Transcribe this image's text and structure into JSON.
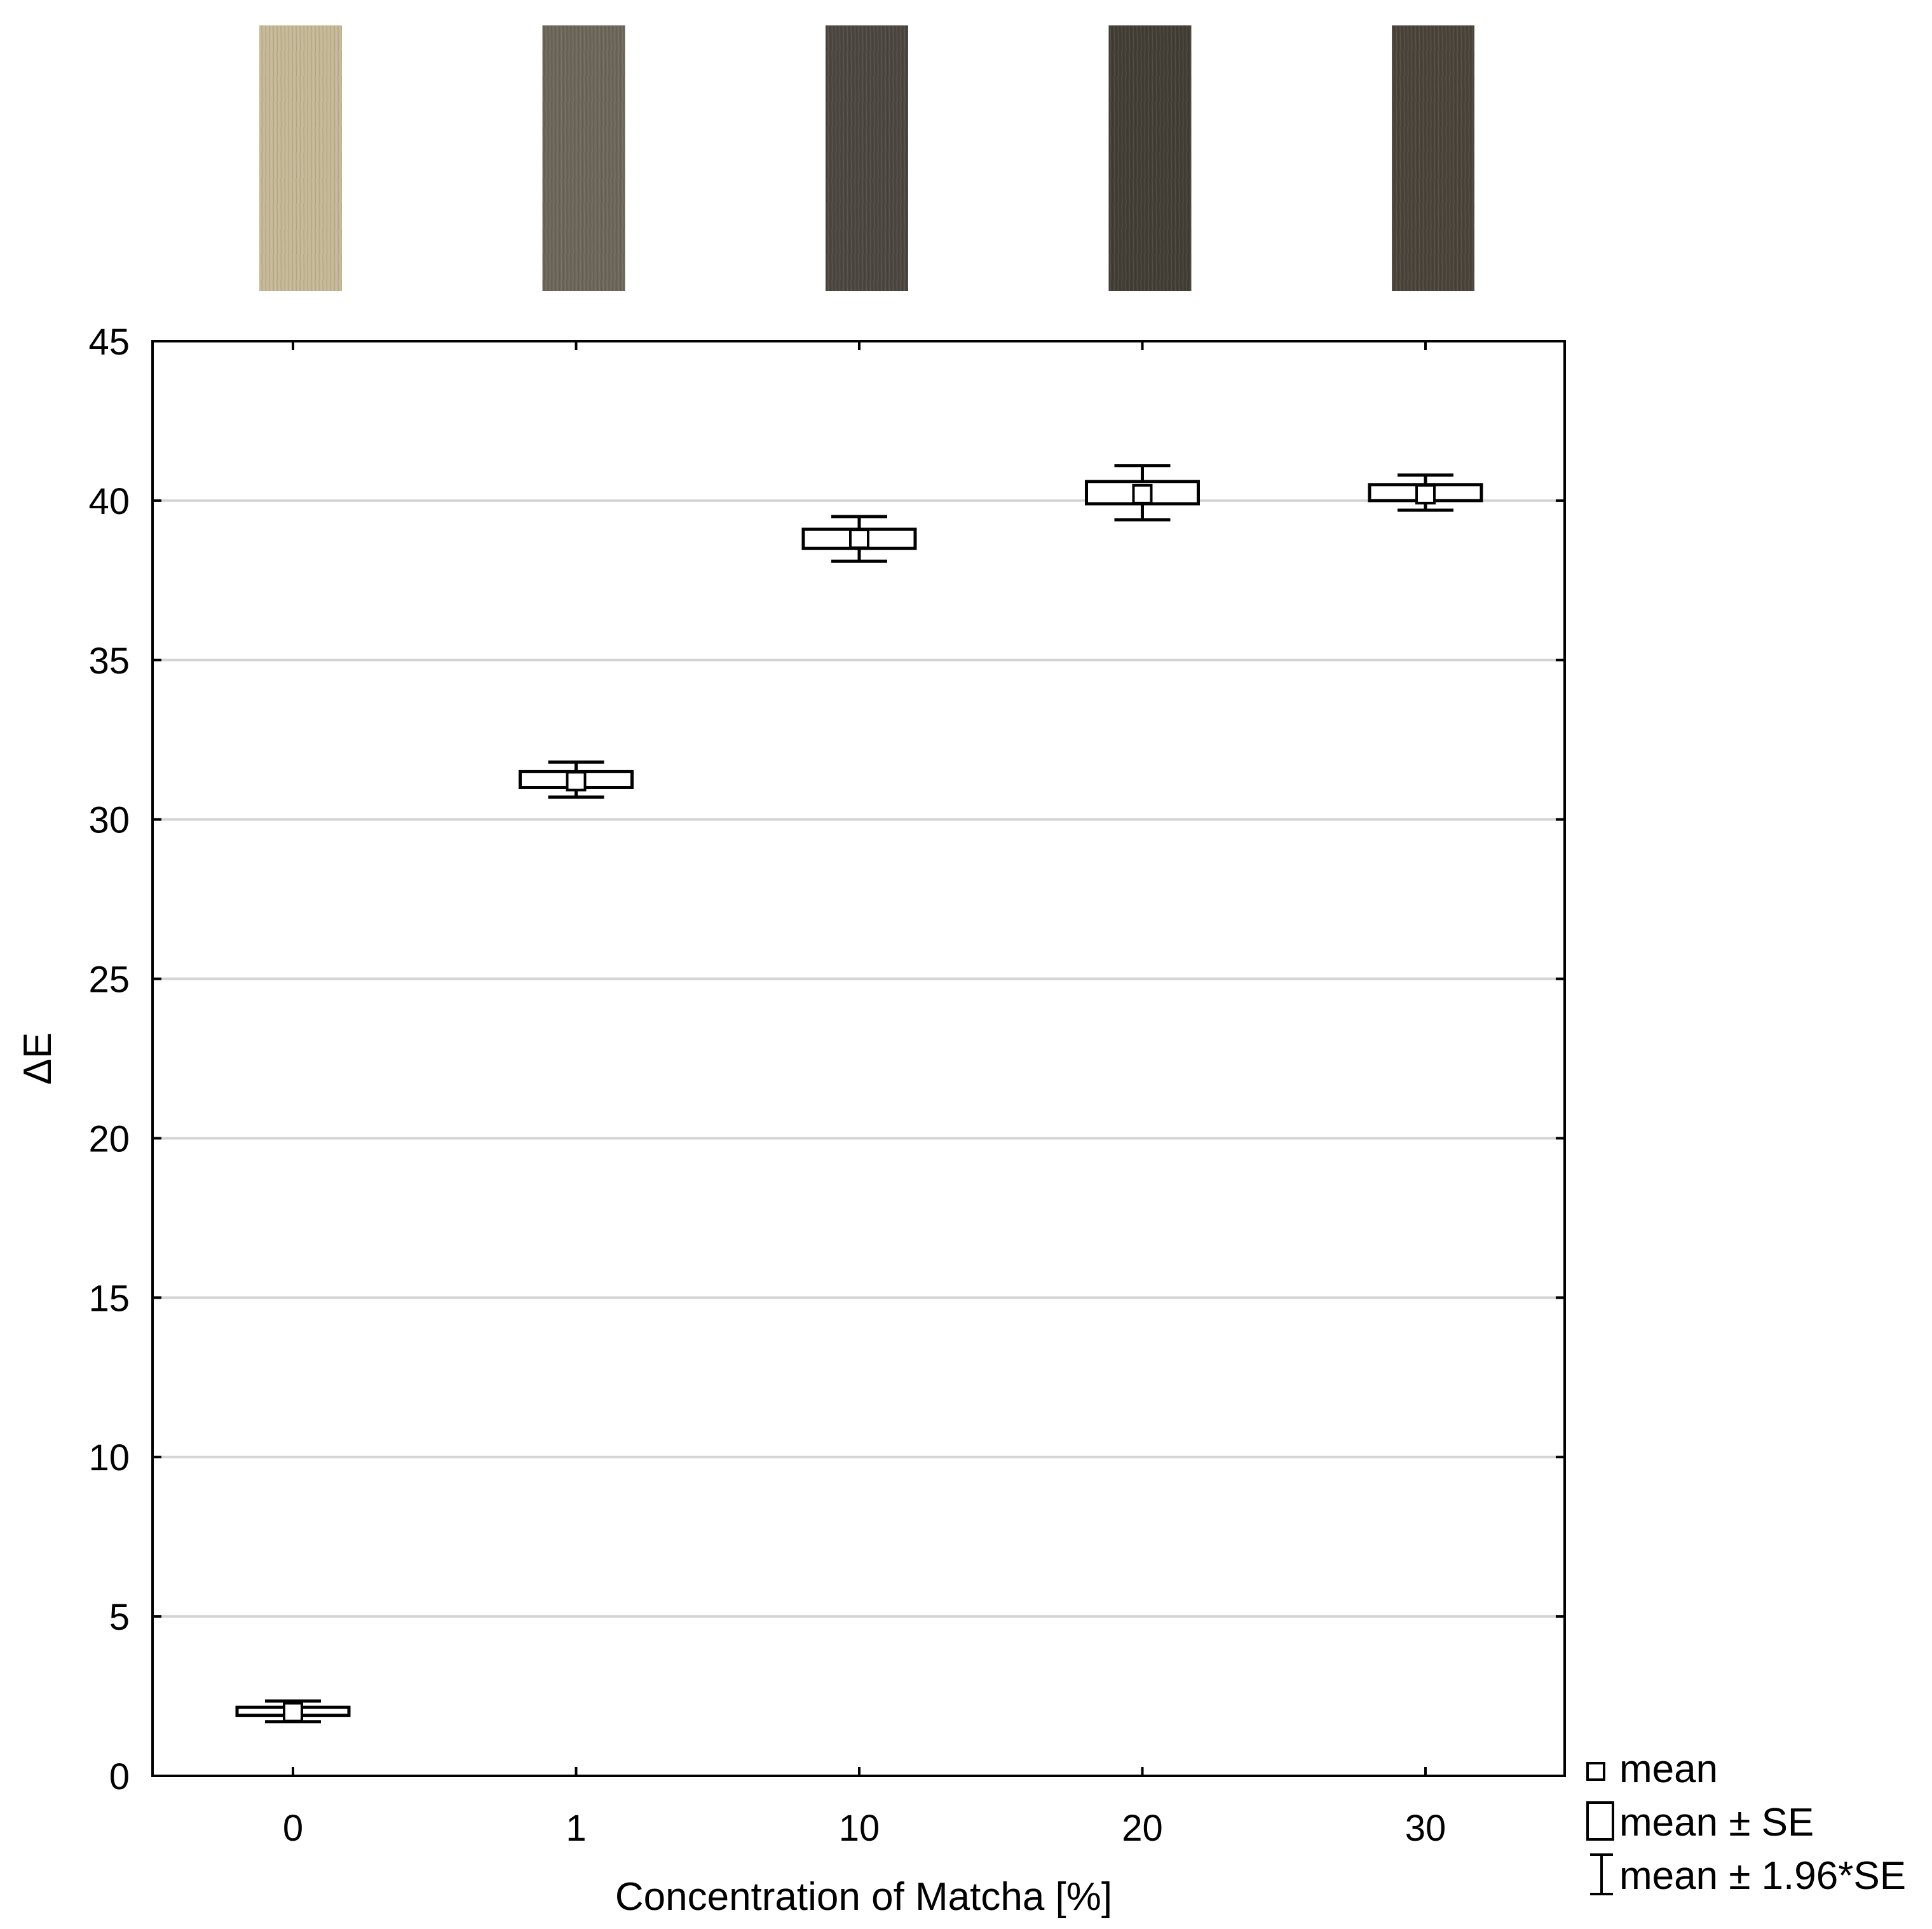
{
  "chart_data": {
    "type": "box",
    "title": "",
    "xlabel": "Concentration of Matcha [%]",
    "ylabel": "ΔE",
    "ylim": [
      0,
      45
    ],
    "yticks": [
      0,
      5,
      10,
      15,
      20,
      25,
      30,
      35,
      40,
      45
    ],
    "grid": "horizontal",
    "legend_position": "bottom-right",
    "categories": [
      "0",
      "1",
      "10",
      "20",
      "30"
    ],
    "series": [
      {
        "name": "ΔE",
        "points": [
          {
            "category": "0",
            "mean": 2.0,
            "se_low": 1.9,
            "se_high": 2.15,
            "ci_low": 1.7,
            "ci_high": 2.35
          },
          {
            "category": "1",
            "mean": 31.2,
            "se_low": 31.0,
            "se_high": 31.5,
            "ci_low": 30.7,
            "ci_high": 31.8
          },
          {
            "category": "10",
            "mean": 38.8,
            "se_low": 38.5,
            "se_high": 39.1,
            "ci_low": 38.1,
            "ci_high": 39.5
          },
          {
            "category": "20",
            "mean": 40.2,
            "se_low": 39.9,
            "se_high": 40.6,
            "ci_low": 39.4,
            "ci_high": 41.1
          },
          {
            "category": "30",
            "mean": 40.2,
            "se_low": 40.0,
            "se_high": 40.5,
            "ci_low": 39.7,
            "ci_high": 40.8
          }
        ]
      }
    ],
    "legend": [
      {
        "label": "mean",
        "symbol": "small-square-icon"
      },
      {
        "label": "mean ± SE",
        "symbol": "box-icon"
      },
      {
        "label": "mean ± 1.96*SE",
        "symbol": "whisker-icon"
      }
    ],
    "swatches": [
      {
        "category": "0",
        "color": "#c5b896"
      },
      {
        "category": "1",
        "color": "#6d665a"
      },
      {
        "category": "10",
        "color": "#4c4740"
      },
      {
        "category": "20",
        "color": "#433e35"
      },
      {
        "category": "30",
        "color": "#4a443b"
      }
    ]
  }
}
